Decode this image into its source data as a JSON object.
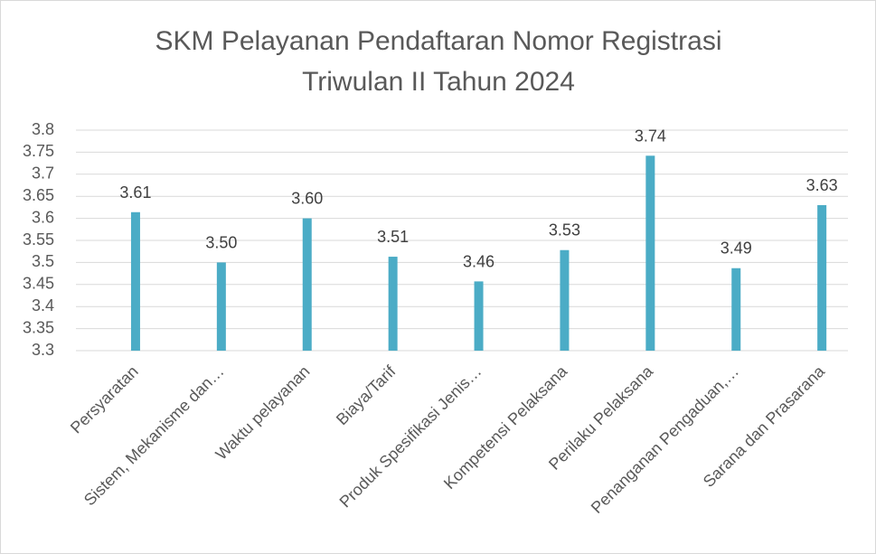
{
  "chart_data": {
    "type": "bar",
    "title": [
      "SKM Pelayanan Pendaftaran Nomor Registrasi",
      "Triwulan II Tahun 2024"
    ],
    "categories": [
      "Persyaratan",
      "Sistem, Mekanisme dan…",
      "Waktu pelayanan",
      "Biaya/Tarif",
      "Produk Spesifikasi Jenis…",
      "Kompetensi Pelaksana",
      "Perilaku Pelaksana",
      "Penanganan Pengaduan,…",
      "Sarana dan Prasarana"
    ],
    "values": [
      3.614,
      3.5,
      3.6,
      3.513,
      3.457,
      3.528,
      3.742,
      3.487,
      3.63
    ],
    "value_labels": [
      "3.61",
      "3.50",
      "3.60",
      "3.51",
      "3.46",
      "3.53",
      "3.74",
      "3.49",
      "3.63"
    ],
    "color": "#4bacc6",
    "ylim": [
      3.3,
      3.8
    ],
    "yticks": [
      3.3,
      3.35,
      3.4,
      3.45,
      3.5,
      3.55,
      3.6,
      3.65,
      3.7,
      3.75,
      3.8
    ],
    "grid": true
  }
}
